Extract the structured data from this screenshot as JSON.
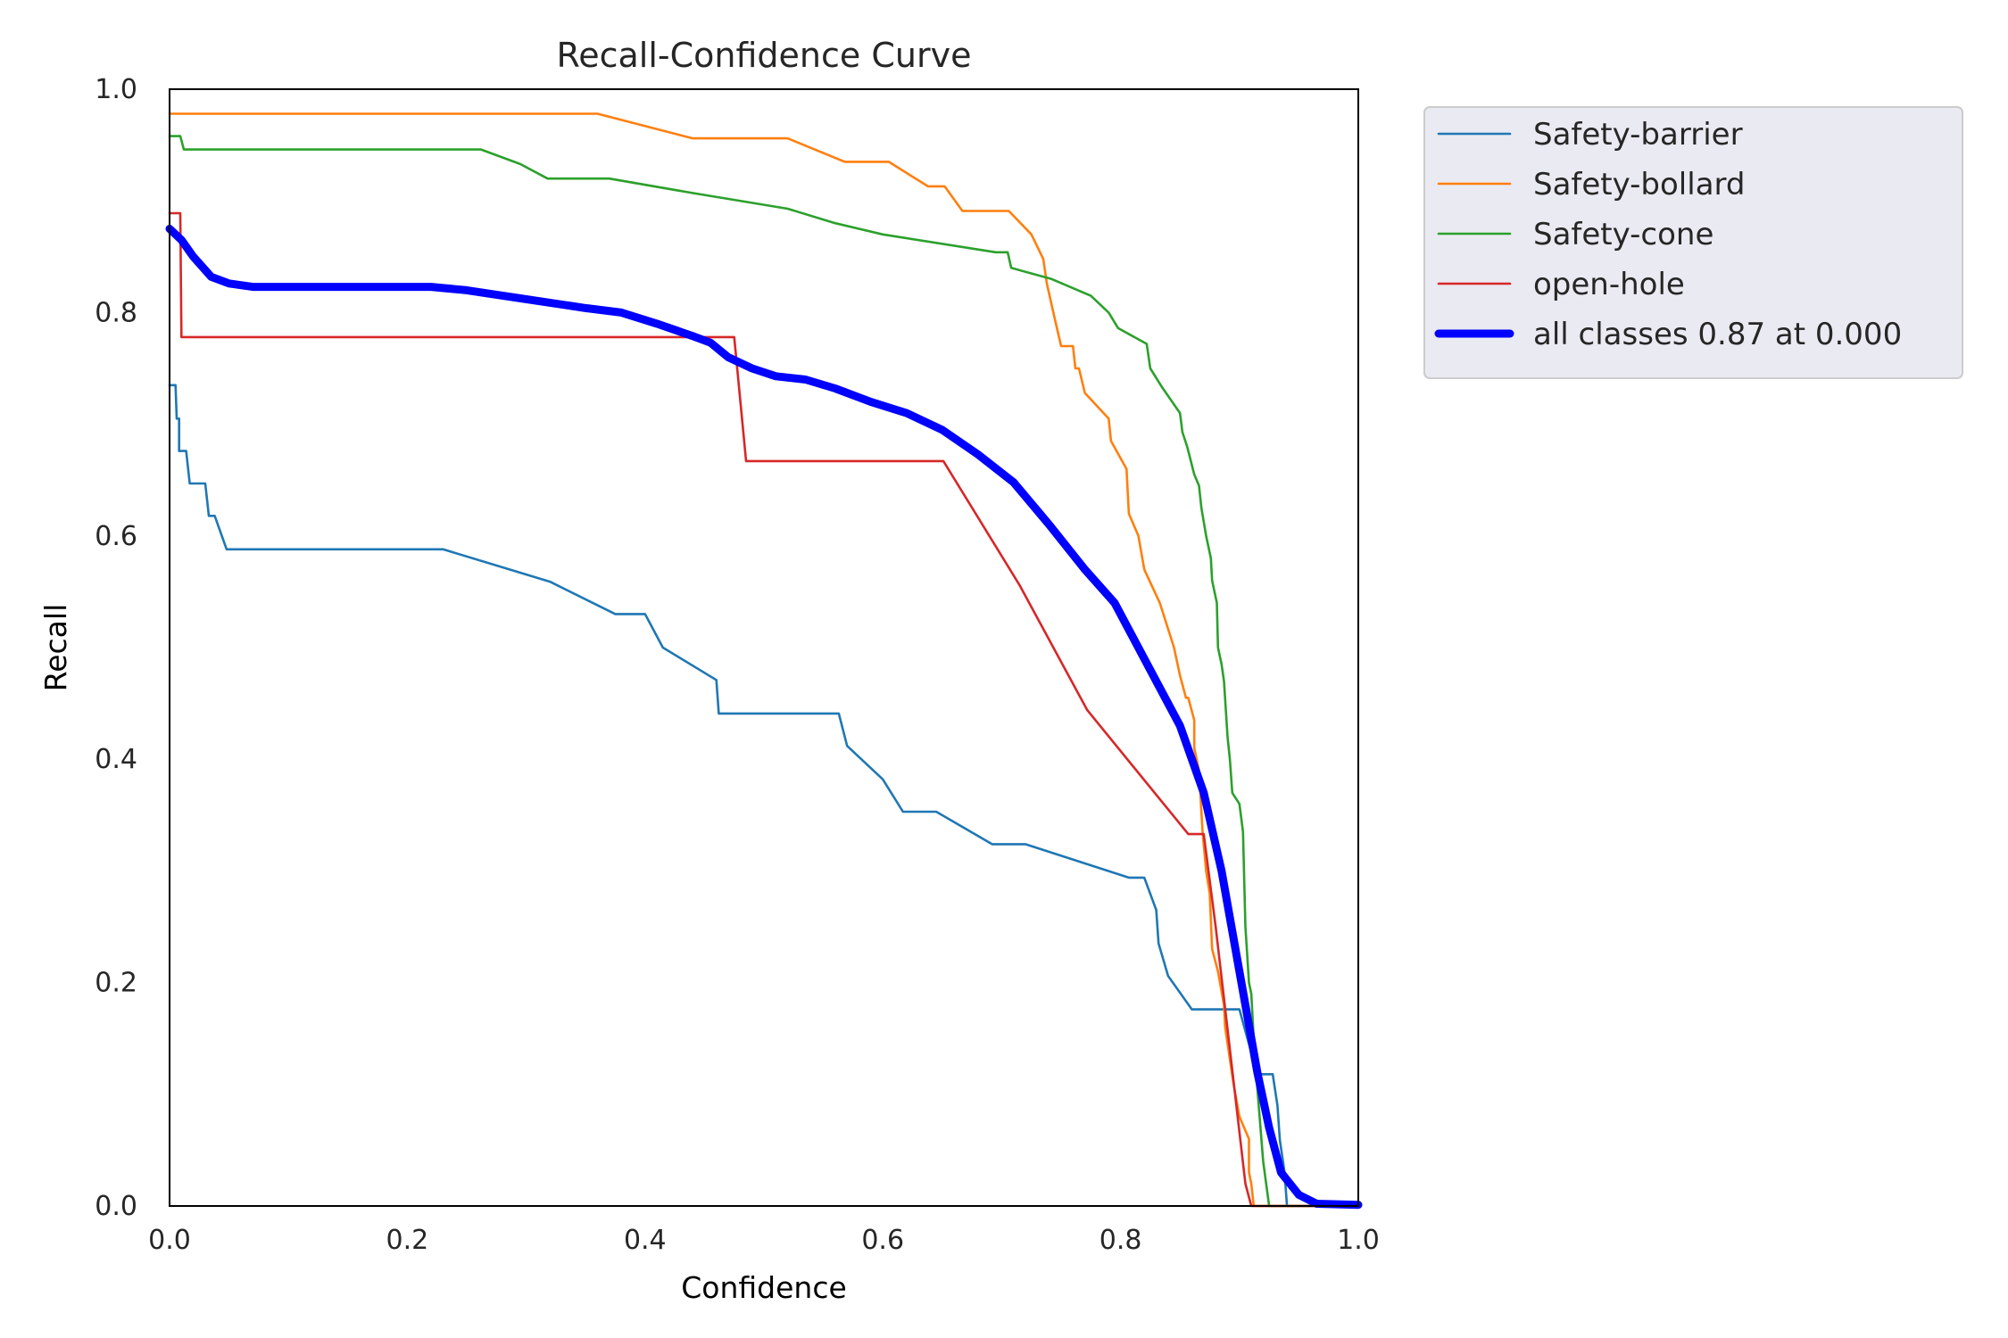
{
  "chart_data": {
    "type": "line",
    "title": "Recall-Confidence Curve",
    "xlabel": "Confidence",
    "ylabel": "Recall",
    "xlim": [
      0,
      1
    ],
    "ylim": [
      0,
      1
    ],
    "x_ticks": [
      "0.0",
      "0.2",
      "0.4",
      "0.6",
      "0.8",
      "1.0"
    ],
    "y_ticks": [
      "0.0",
      "0.2",
      "0.4",
      "0.6",
      "0.8",
      "1.0"
    ],
    "grid": false,
    "legend_position": "outside-right-top",
    "series": [
      {
        "name": "Safety-barrier",
        "color": "#1f77b4",
        "width": "thin",
        "points": [
          [
            0,
            0.735
          ],
          [
            0.005,
            0.735
          ],
          [
            0.006,
            0.705
          ],
          [
            0.008,
            0.705
          ],
          [
            0.008,
            0.676
          ],
          [
            0.014,
            0.676
          ],
          [
            0.017,
            0.647
          ],
          [
            0.03,
            0.647
          ],
          [
            0.033,
            0.618
          ],
          [
            0.038,
            0.618
          ],
          [
            0.048,
            0.588
          ],
          [
            0.23,
            0.588
          ],
          [
            0.32,
            0.559
          ],
          [
            0.375,
            0.53
          ],
          [
            0.4,
            0.53
          ],
          [
            0.415,
            0.5
          ],
          [
            0.46,
            0.471
          ],
          [
            0.462,
            0.441
          ],
          [
            0.563,
            0.441
          ],
          [
            0.57,
            0.412
          ],
          [
            0.6,
            0.382
          ],
          [
            0.617,
            0.353
          ],
          [
            0.645,
            0.353
          ],
          [
            0.692,
            0.324
          ],
          [
            0.72,
            0.324
          ],
          [
            0.807,
            0.294
          ],
          [
            0.82,
            0.294
          ],
          [
            0.83,
            0.265
          ],
          [
            0.832,
            0.235
          ],
          [
            0.84,
            0.206
          ],
          [
            0.86,
            0.176
          ],
          [
            0.9,
            0.176
          ],
          [
            0.915,
            0.118
          ],
          [
            0.928,
            0.118
          ],
          [
            0.932,
            0.09
          ],
          [
            0.934,
            0.059
          ],
          [
            0.938,
            0.03
          ],
          [
            0.94,
            0
          ],
          [
            1.0,
            0
          ]
        ]
      },
      {
        "name": "Safety-bollard",
        "color": "#ff7f0e",
        "width": "thin",
        "points": [
          [
            0,
            0.978
          ],
          [
            0.36,
            0.978
          ],
          [
            0.44,
            0.956
          ],
          [
            0.52,
            0.956
          ],
          [
            0.568,
            0.935
          ],
          [
            0.605,
            0.935
          ],
          [
            0.638,
            0.913
          ],
          [
            0.652,
            0.913
          ],
          [
            0.667,
            0.891
          ],
          [
            0.706,
            0.891
          ],
          [
            0.725,
            0.87
          ],
          [
            0.735,
            0.848
          ],
          [
            0.738,
            0.826
          ],
          [
            0.745,
            0.793
          ],
          [
            0.75,
            0.77
          ],
          [
            0.76,
            0.77
          ],
          [
            0.762,
            0.75
          ],
          [
            0.765,
            0.75
          ],
          [
            0.77,
            0.728
          ],
          [
            0.79,
            0.705
          ],
          [
            0.792,
            0.685
          ],
          [
            0.805,
            0.66
          ],
          [
            0.807,
            0.62
          ],
          [
            0.815,
            0.6
          ],
          [
            0.82,
            0.57
          ],
          [
            0.833,
            0.54
          ],
          [
            0.845,
            0.5
          ],
          [
            0.85,
            0.475
          ],
          [
            0.855,
            0.455
          ],
          [
            0.857,
            0.455
          ],
          [
            0.862,
            0.435
          ],
          [
            0.862,
            0.41
          ],
          [
            0.866,
            0.39
          ],
          [
            0.869,
            0.335
          ],
          [
            0.872,
            0.3
          ],
          [
            0.875,
            0.28
          ],
          [
            0.877,
            0.23
          ],
          [
            0.882,
            0.21
          ],
          [
            0.887,
            0.18
          ],
          [
            0.888,
            0.16
          ],
          [
            0.895,
            0.11
          ],
          [
            0.9,
            0.08
          ],
          [
            0.908,
            0.06
          ],
          [
            0.908,
            0.03
          ],
          [
            0.91,
            0.02
          ],
          [
            0.912,
            0
          ],
          [
            1.0,
            0
          ]
        ]
      },
      {
        "name": "Safety-cone",
        "color": "#2ca02c",
        "width": "thin",
        "points": [
          [
            0,
            0.958
          ],
          [
            0.009,
            0.958
          ],
          [
            0.012,
            0.946
          ],
          [
            0.262,
            0.946
          ],
          [
            0.295,
            0.933
          ],
          [
            0.318,
            0.92
          ],
          [
            0.37,
            0.92
          ],
          [
            0.44,
            0.907
          ],
          [
            0.52,
            0.893
          ],
          [
            0.56,
            0.88
          ],
          [
            0.6,
            0.87
          ],
          [
            0.695,
            0.854
          ],
          [
            0.705,
            0.854
          ],
          [
            0.708,
            0.84
          ],
          [
            0.742,
            0.83
          ],
          [
            0.775,
            0.815
          ],
          [
            0.79,
            0.8
          ],
          [
            0.798,
            0.786
          ],
          [
            0.822,
            0.772
          ],
          [
            0.825,
            0.75
          ],
          [
            0.835,
            0.733
          ],
          [
            0.85,
            0.71
          ],
          [
            0.852,
            0.693
          ],
          [
            0.856,
            0.68
          ],
          [
            0.862,
            0.655
          ],
          [
            0.866,
            0.645
          ],
          [
            0.868,
            0.625
          ],
          [
            0.872,
            0.6
          ],
          [
            0.876,
            0.58
          ],
          [
            0.877,
            0.56
          ],
          [
            0.881,
            0.54
          ],
          [
            0.882,
            0.5
          ],
          [
            0.885,
            0.485
          ],
          [
            0.887,
            0.47
          ],
          [
            0.89,
            0.42
          ],
          [
            0.892,
            0.4
          ],
          [
            0.894,
            0.37
          ],
          [
            0.9,
            0.36
          ],
          [
            0.903,
            0.335
          ],
          [
            0.905,
            0.25
          ],
          [
            0.908,
            0.2
          ],
          [
            0.91,
            0.19
          ],
          [
            0.912,
            0.15
          ],
          [
            0.914,
            0.12
          ],
          [
            0.917,
            0.08
          ],
          [
            0.92,
            0.04
          ],
          [
            0.925,
            0
          ],
          [
            1.0,
            0
          ]
        ]
      },
      {
        "name": "open-hole",
        "color": "#d62728",
        "width": "thin",
        "points": [
          [
            0,
            0.889
          ],
          [
            0.009,
            0.889
          ],
          [
            0.01,
            0.778
          ],
          [
            0.475,
            0.778
          ],
          [
            0.485,
            0.667
          ],
          [
            0.651,
            0.667
          ],
          [
            0.715,
            0.556
          ],
          [
            0.772,
            0.444
          ],
          [
            0.857,
            0.333
          ],
          [
            0.87,
            0.333
          ],
          [
            0.88,
            0.25
          ],
          [
            0.905,
            0.02
          ],
          [
            0.91,
            0
          ],
          [
            1.0,
            0
          ]
        ]
      },
      {
        "name": "all classes 0.87 at 0.000",
        "color": "#0000ff",
        "width": "thick",
        "points": [
          [
            0,
            0.875
          ],
          [
            0.01,
            0.865
          ],
          [
            0.02,
            0.85
          ],
          [
            0.035,
            0.832
          ],
          [
            0.05,
            0.826
          ],
          [
            0.07,
            0.823
          ],
          [
            0.15,
            0.823
          ],
          [
            0.22,
            0.823
          ],
          [
            0.25,
            0.82
          ],
          [
            0.3,
            0.812
          ],
          [
            0.35,
            0.804
          ],
          [
            0.38,
            0.8
          ],
          [
            0.41,
            0.79
          ],
          [
            0.44,
            0.779
          ],
          [
            0.455,
            0.773
          ],
          [
            0.47,
            0.76
          ],
          [
            0.49,
            0.75
          ],
          [
            0.51,
            0.743
          ],
          [
            0.535,
            0.74
          ],
          [
            0.56,
            0.732
          ],
          [
            0.59,
            0.72
          ],
          [
            0.62,
            0.71
          ],
          [
            0.65,
            0.695
          ],
          [
            0.68,
            0.673
          ],
          [
            0.71,
            0.648
          ],
          [
            0.74,
            0.61
          ],
          [
            0.77,
            0.57
          ],
          [
            0.795,
            0.54
          ],
          [
            0.82,
            0.49
          ],
          [
            0.85,
            0.43
          ],
          [
            0.87,
            0.37
          ],
          [
            0.885,
            0.3
          ],
          [
            0.9,
            0.21
          ],
          [
            0.915,
            0.12
          ],
          [
            0.925,
            0.07
          ],
          [
            0.935,
            0.03
          ],
          [
            0.95,
            0.01
          ],
          [
            0.965,
            0.002
          ],
          [
            1.0,
            0.001
          ]
        ]
      }
    ]
  }
}
